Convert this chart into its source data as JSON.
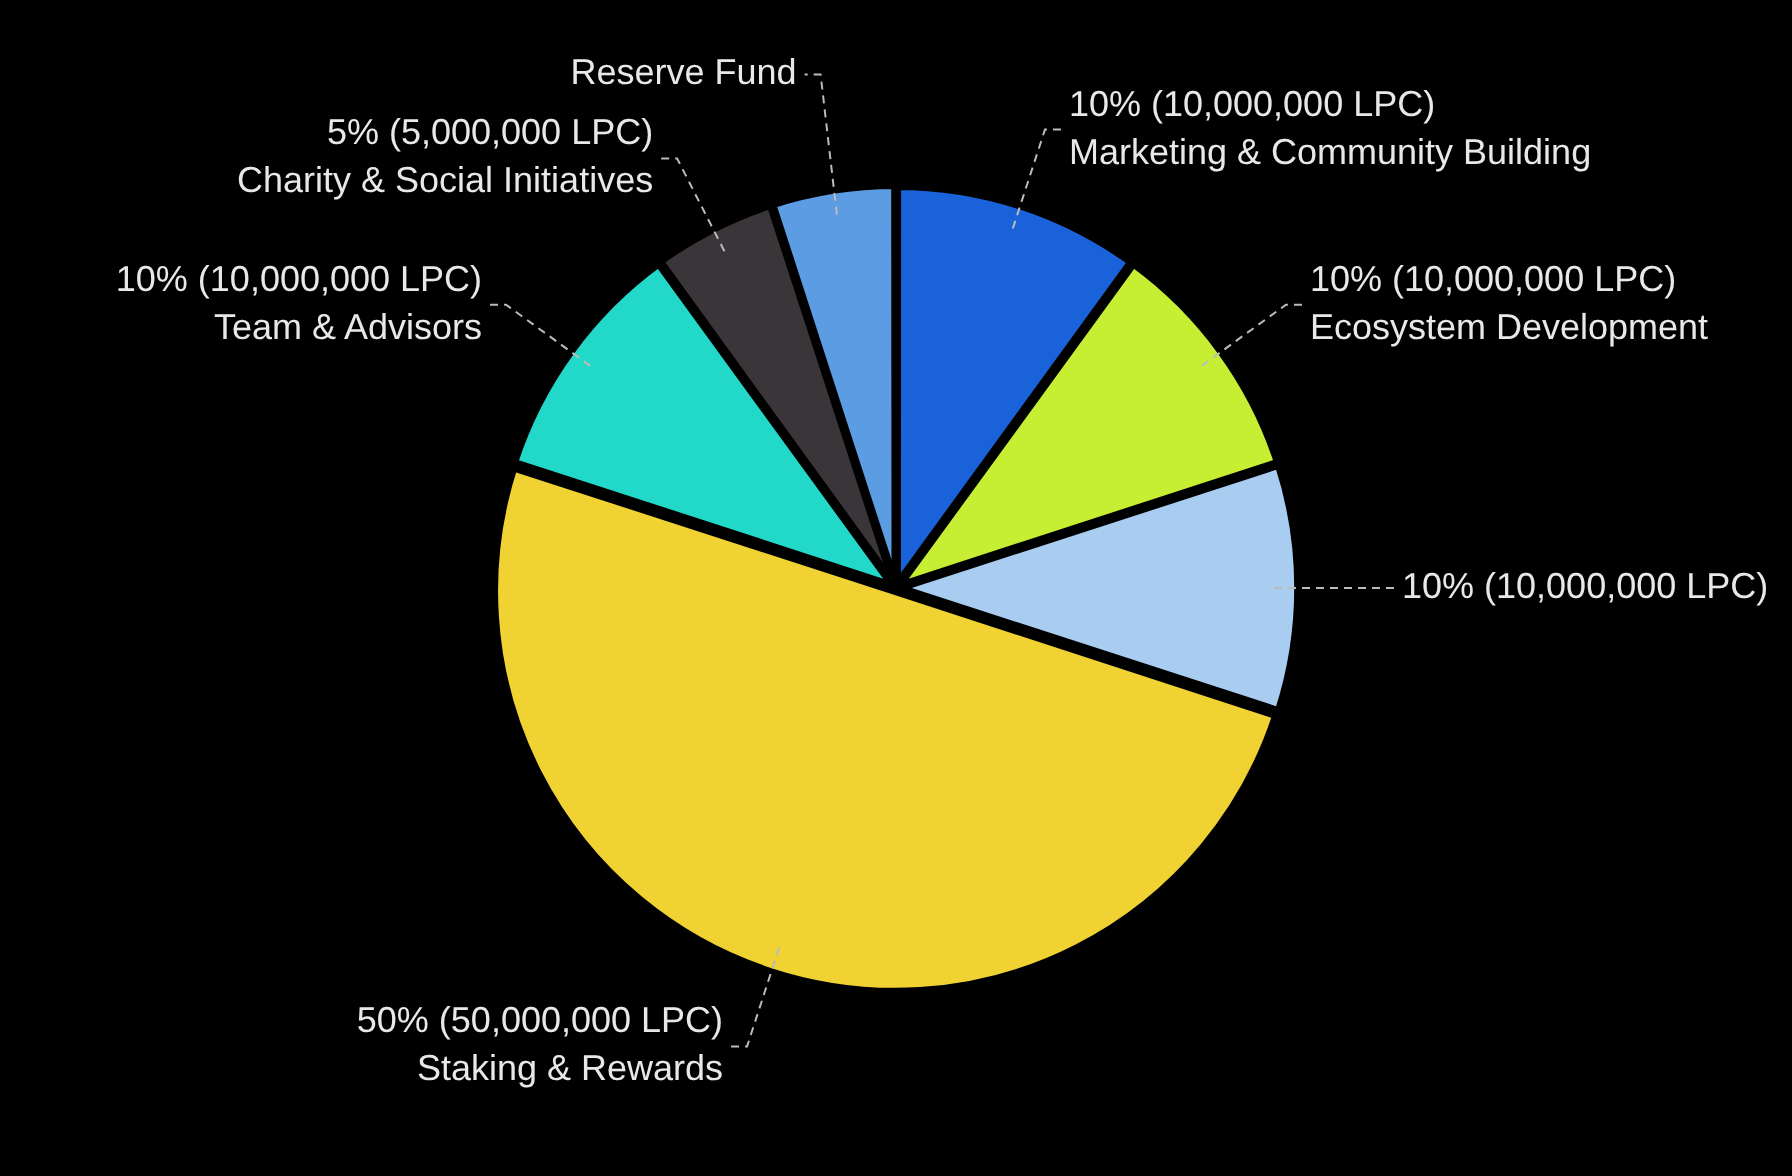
{
  "chart_data": {
    "type": "pie",
    "categories": [
      "Marketing & Community Building",
      "Ecosystem Development",
      null,
      "Staking & Rewards",
      "Team & Advisors",
      "Charity & Social Initiatives",
      "Reserve Fund"
    ],
    "values": [
      10,
      10,
      10,
      50,
      10,
      5,
      5
    ],
    "value_labels": [
      "10% (10,000,000 LPC)",
      "10% (10,000,000 LPC)",
      "10% (10,000,000 LPC)",
      "50% (50,000,000 LPC)",
      "10% (10,000,000 LPC)",
      "5% (5,000,000 LPC)",
      null
    ],
    "colors": [
      "#1a62da",
      "#c6ef34",
      "#a9cdf0",
      "#f0d232",
      "#22d9c9",
      "#3a3538",
      "#5c9ce2"
    ],
    "legend": false
  }
}
